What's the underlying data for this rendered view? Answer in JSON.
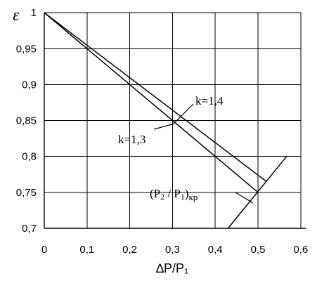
{
  "chart_data": {
    "type": "line",
    "xlabel": "∆P/P₁",
    "ylabel": "ε",
    "xlim": [
      0,
      0.6
    ],
    "ylim": [
      0.7,
      1.0
    ],
    "x_ticks": [
      "0",
      "0,1",
      "0,2",
      "0,3",
      "0,4",
      "0,5",
      "0,6"
    ],
    "y_ticks": [
      "0,7",
      "0,75",
      "0,8",
      "0,85",
      "0,9",
      "0,95",
      "1"
    ],
    "grid": true,
    "series": [
      {
        "name": "k=1,4",
        "x": [
          0,
          0.52
        ],
        "y": [
          1.0,
          0.765
        ]
      },
      {
        "name": "k=1,3",
        "x": [
          0,
          0.5
        ],
        "y": [
          1.0,
          0.75
        ]
      },
      {
        "name": "(P₂ / P₁)кр",
        "x": [
          0.43,
          0.567
        ],
        "y": [
          0.7,
          0.8
        ]
      }
    ],
    "annotations": {
      "k14": "k=1,4",
      "k13": "k=1,3",
      "crit_main": "(P",
      "crit_sub1": "2",
      "crit_mid": " / P",
      "crit_sub2": "1",
      "crit_close": ")",
      "crit_suffix": "кр"
    }
  }
}
